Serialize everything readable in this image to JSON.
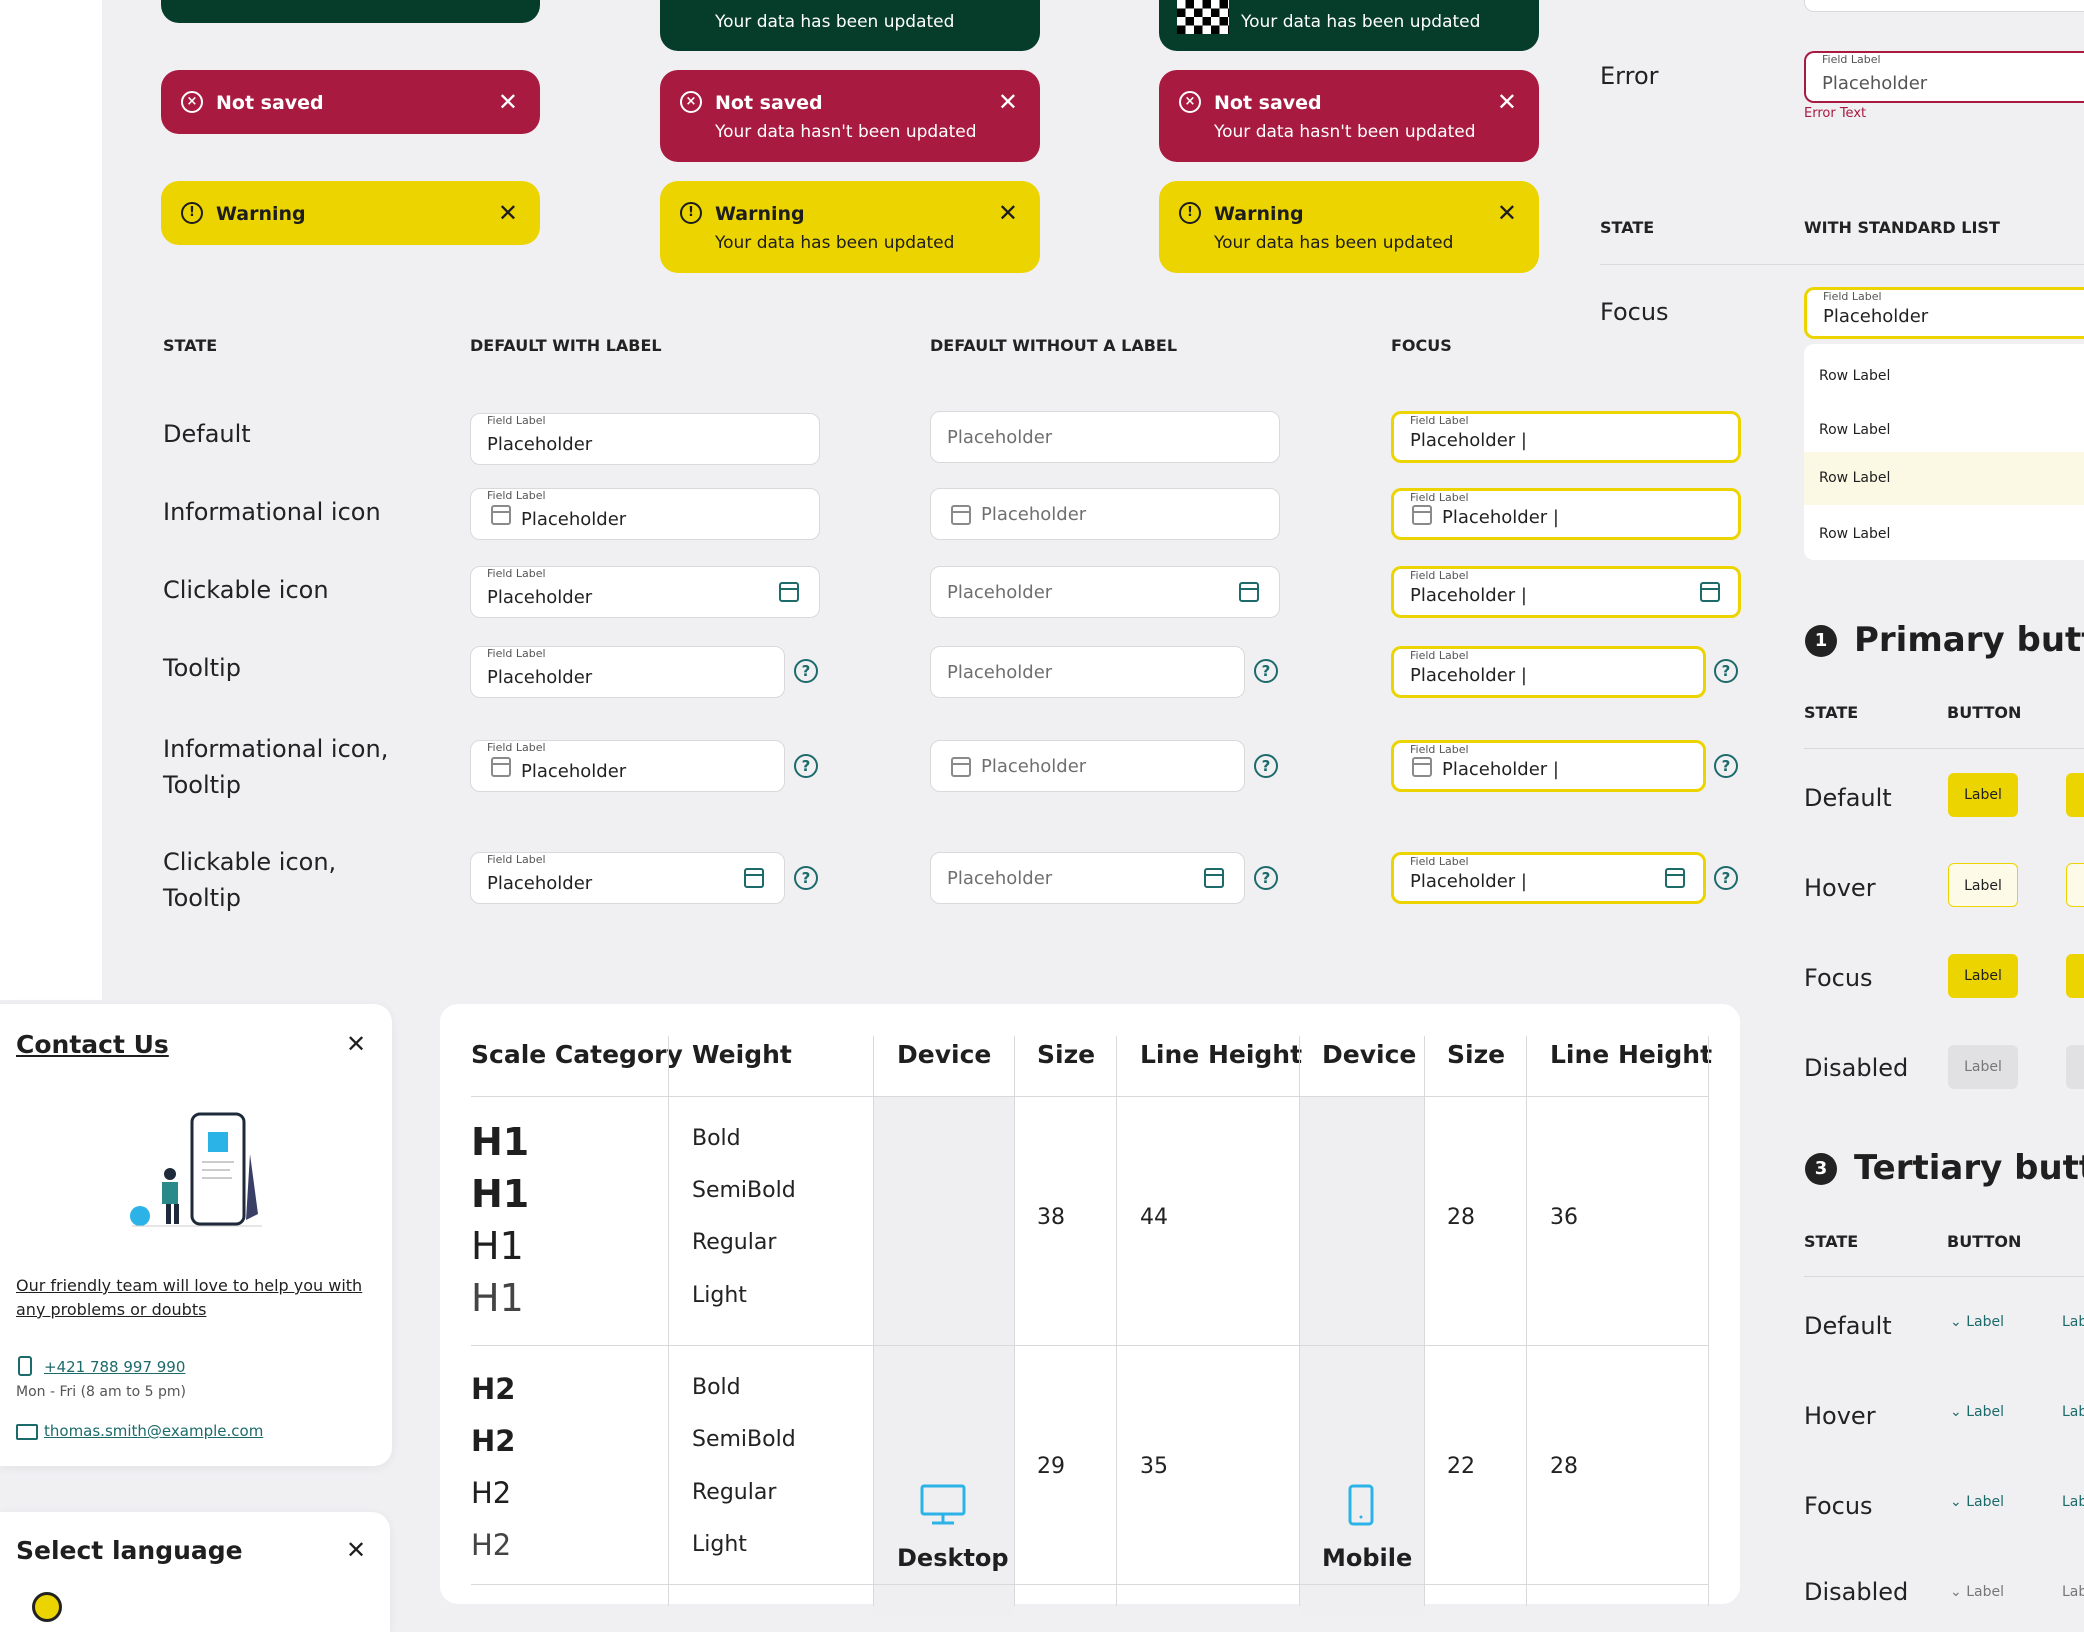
{
  "toasts": {
    "updated_sub": "Your data has been updated",
    "not_saved_title": "Not saved",
    "not_saved_sub": "Your data hasn't been updated",
    "warning_title": "Warning",
    "warning_sub": "Your data has been updated",
    "colors": {
      "success": "#063d2a",
      "error": "#a81a40",
      "warning": "#ecd400"
    }
  },
  "field_table": {
    "headers": [
      "STATE",
      "DEFAULT WITH LABEL",
      "DEFAULT WITHOUT A LABEL",
      "FOCUS"
    ],
    "rows": [
      "Default",
      "Informational icon",
      "Clickable icon",
      "Tooltip",
      "Informational icon,\nTooltip",
      "Clickable icon,\nTooltip"
    ],
    "field_label": "Field Label",
    "placeholder": "Placeholder",
    "placeholder_focus": "Placeholder |",
    "tooltip_glyph": "?"
  },
  "right_panel": {
    "error_state": "Error",
    "error_field_label": "Field Label",
    "error_placeholder": "Placeholder",
    "error_text": "Error Text",
    "state_header": "STATE",
    "list_header": "WITH STANDARD LIST",
    "focus_state": "Focus",
    "focus_field_label": "Field Label",
    "focus_placeholder": "Placeholder",
    "rows": [
      "Row Label",
      "Row Label",
      "Row Label",
      "Row Label"
    ]
  },
  "primary_buttons": {
    "number": "1",
    "title": "Primary button",
    "state_header": "STATE",
    "button_header": "BUTTON",
    "states": [
      "Default",
      "Hover",
      "Focus",
      "Disabled"
    ],
    "label": "Label"
  },
  "tertiary_buttons": {
    "number": "3",
    "title": "Tertiary button",
    "state_header": "STATE",
    "button_header": "BUTTON",
    "states": [
      "Default",
      "Hover",
      "Focus",
      "Disabled"
    ],
    "label": "Label",
    "label_cut": "Lab"
  },
  "contact": {
    "title": "Contact Us",
    "text": "Our friendly team will love to help you with any problems or doubts",
    "phone": "+421 788 997 990",
    "hours": "Mon - Fri (8 am to 5 pm)",
    "email": "thomas.smith@example.com"
  },
  "language": {
    "title": "Select language"
  },
  "typography": {
    "headers": [
      "Scale Category",
      "Weight",
      "Device",
      "Size",
      "Line Height",
      "Device",
      "Size",
      "Line Height"
    ],
    "h1": {
      "label": "H1",
      "weights": [
        "Bold",
        "SemiBold",
        "Regular",
        "Light"
      ],
      "desktop_size": "38",
      "desktop_lh": "44",
      "mobile_size": "28",
      "mobile_lh": "36"
    },
    "h2": {
      "label": "H2",
      "weights": [
        "Bold",
        "SemiBold",
        "Regular",
        "Light"
      ],
      "desktop_size": "29",
      "desktop_lh": "35",
      "mobile_size": "22",
      "mobile_lh": "28"
    },
    "desktop": "Desktop",
    "mobile": "Mobile"
  },
  "close_glyph": "✕",
  "icons": {
    "success": "check-circle-icon",
    "error": "x-circle-icon",
    "warning": "exclamation-circle-icon"
  }
}
